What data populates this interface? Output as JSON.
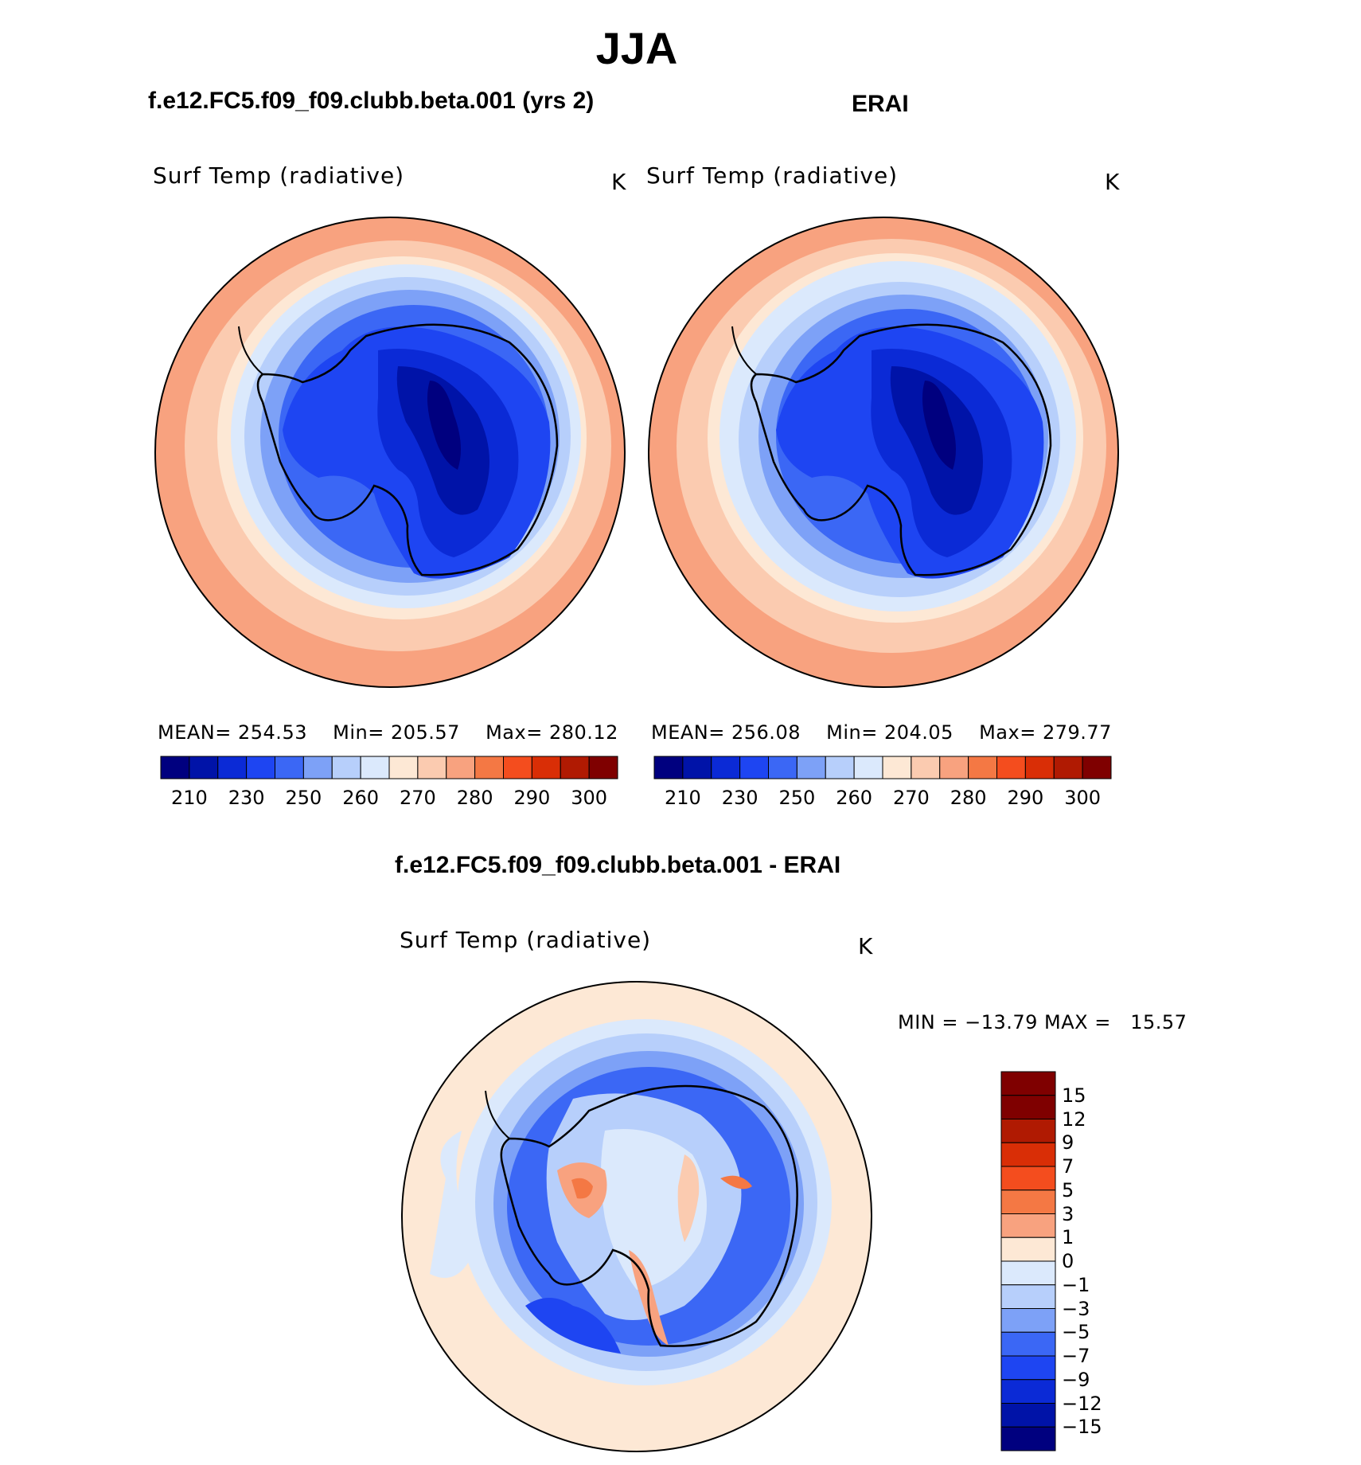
{
  "chart_data": {
    "type": "heatmap",
    "title": "JJA",
    "panels": [
      {
        "title": "f.e12.FC5.f09_f09.clubb.beta.001 (yrs 2)",
        "variable": "Surf Temp (radiative)",
        "units": "K",
        "stats": {
          "mean_label": "MEAN=",
          "mean": "254.53",
          "min_label": "Min=",
          "min": "205.57",
          "max_label": "Max=",
          "max": "280.12"
        },
        "projection": "south-polar-stereographic",
        "season": "JJA"
      },
      {
        "title": "ERAI",
        "variable": "Surf Temp (radiative)",
        "units": "K",
        "stats": {
          "mean_label": "MEAN=",
          "mean": "256.08",
          "min_label": "Min=",
          "min": "204.05",
          "max_label": "Max=",
          "max": "279.77"
        },
        "projection": "south-polar-stereographic",
        "season": "JJA"
      },
      {
        "title": "f.e12.FC5.f09_f09.clubb.beta.001 - ERAI",
        "variable": "Surf Temp (radiative)",
        "units": "K",
        "stats_text": "MIN = −13.79 MAX =   15.57",
        "projection": "south-polar-stereographic",
        "season": "JJA"
      }
    ],
    "colorbar_absolute": {
      "tick_labels": [
        "210",
        "230",
        "250",
        "260",
        "270",
        "280",
        "290",
        "300"
      ],
      "colors": [
        "#00007f",
        "#0013a8",
        "#0b2ad6",
        "#1e45f2",
        "#3b67f5",
        "#7da1f7",
        "#b7cffb",
        "#dbe9fc",
        "#fde8d5",
        "#fbcbb0",
        "#f8a27f",
        "#f47844",
        "#f44d1e",
        "#d92e06",
        "#b01a02",
        "#7f0000"
      ]
    },
    "colorbar_difference": {
      "tick_labels": [
        "15",
        "12",
        "9",
        "7",
        "5",
        "3",
        "1",
        "0",
        "−1",
        "−3",
        "−5",
        "−7",
        "−9",
        "−12",
        "−15"
      ],
      "colors": [
        "#7f0000",
        "#b01a02",
        "#d92e06",
        "#f44d1e",
        "#f47844",
        "#f8a27f",
        "#fde8d5",
        "#dbe9fc",
        "#b7cffb",
        "#7da1f7",
        "#3b67f5",
        "#1e45f2",
        "#0b2ad6",
        "#0013a8",
        "#00007f"
      ]
    }
  }
}
